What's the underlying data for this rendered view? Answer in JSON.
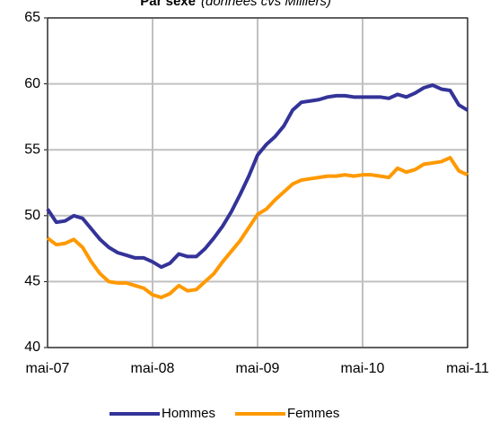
{
  "chart_data": {
    "type": "line",
    "title": "Par sexe",
    "subtitle": "(données cvs Milliers)",
    "categories": [
      "mai-07",
      null,
      null,
      null,
      null,
      null,
      null,
      null,
      null,
      null,
      null,
      null,
      "mai-08",
      null,
      null,
      null,
      null,
      null,
      null,
      null,
      null,
      null,
      null,
      null,
      "mai-09",
      null,
      null,
      null,
      null,
      null,
      null,
      null,
      null,
      null,
      null,
      null,
      "mai-10",
      null,
      null,
      null,
      null,
      null,
      null,
      null,
      null,
      null,
      null,
      null,
      "mai-11"
    ],
    "series": [
      {
        "name": "Hommes",
        "color": "#333399",
        "values": [
          50.5,
          49.5,
          49.6,
          50.0,
          49.8,
          49.0,
          48.2,
          47.6,
          47.2,
          47.0,
          46.8,
          46.8,
          46.5,
          46.1,
          46.4,
          47.1,
          46.9,
          46.9,
          47.5,
          48.3,
          49.2,
          50.3,
          51.6,
          53.0,
          54.6,
          55.4,
          56.0,
          56.8,
          58.0,
          58.6,
          58.7,
          58.8,
          59.0,
          59.1,
          59.1,
          59.0,
          59.0,
          59.0,
          59.0,
          58.9,
          59.2,
          59.0,
          59.3,
          59.7,
          59.9,
          59.6,
          59.5,
          58.4,
          58.0
        ]
      },
      {
        "name": "Femmes",
        "color": "#ff9900",
        "values": [
          48.3,
          47.8,
          47.9,
          48.2,
          47.6,
          46.5,
          45.6,
          45.0,
          44.9,
          44.9,
          44.7,
          44.5,
          44.0,
          43.8,
          44.1,
          44.7,
          44.3,
          44.4,
          45.0,
          45.6,
          46.5,
          47.3,
          48.1,
          49.1,
          50.1,
          50.5,
          51.2,
          51.8,
          52.4,
          52.7,
          52.8,
          52.9,
          53.0,
          53.0,
          53.1,
          53.0,
          53.1,
          53.1,
          53.0,
          52.9,
          53.6,
          53.3,
          53.5,
          53.9,
          54.0,
          54.1,
          54.4,
          53.4,
          53.1
        ]
      }
    ],
    "ylim": [
      40,
      65
    ],
    "yticks": [
      40,
      45,
      50,
      55,
      60,
      65
    ],
    "grid": true,
    "legend": "bottom"
  }
}
